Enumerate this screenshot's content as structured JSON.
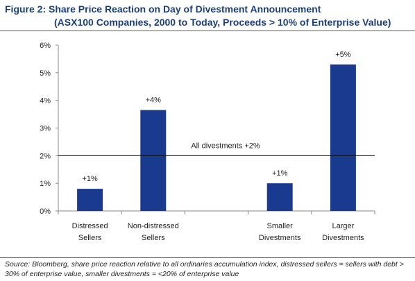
{
  "title": {
    "line1": "Figure 2:  Share Price Reaction on Day of Divestment Announcement",
    "line2": "(ASX100 Companies, 2000 to Today, Proceeds > 10% of Enterprise Value)"
  },
  "source": {
    "text": "Source:    Bloomberg, share price reaction relative to all ordinaries accumulation index, distressed sellers = sellers with debt > 30% of enterprise value, smaller divestments = <20% of enterprise value"
  },
  "chart_data": {
    "type": "bar",
    "categories": [
      [
        "Distressed",
        "Sellers"
      ],
      [
        "Non-distressed",
        "Sellers"
      ],
      [
        "",
        ""
      ],
      [
        "Smaller",
        "Divestments"
      ],
      [
        "Larger",
        "Divestments"
      ]
    ],
    "values": [
      0.8,
      3.65,
      null,
      1.0,
      5.3
    ],
    "data_labels": [
      "+1%",
      "+4%",
      "",
      "+1%",
      "+5%"
    ],
    "yticks": [
      "0%",
      "1%",
      "2%",
      "3%",
      "4%",
      "5%",
      "6%"
    ],
    "ylim": [
      0,
      6
    ],
    "bar_color": "#1a3a8f",
    "reference_line": {
      "value": 2.0,
      "label": "All divestments +2%"
    },
    "grid": false
  }
}
